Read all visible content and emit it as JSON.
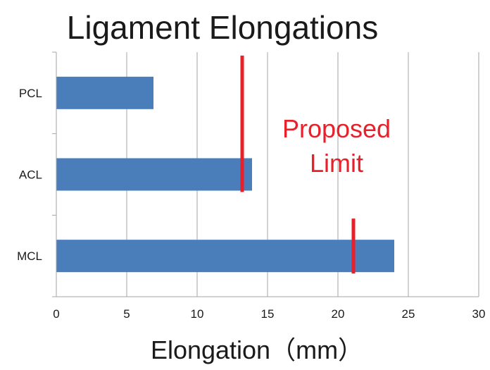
{
  "chart_data": {
    "type": "bar",
    "orientation": "horizontal",
    "title": "Ligament Elongations",
    "xlabel": "Elongation（mm）",
    "ylabel": "",
    "categories": [
      "PCL",
      "ACL",
      "MCL"
    ],
    "values": [
      6.9,
      13.9,
      24.0
    ],
    "xlim": [
      0,
      30
    ],
    "xticks": [
      0,
      5,
      10,
      15,
      20,
      25,
      30
    ],
    "grid": "vertical",
    "legend": "none",
    "bar_color": "#4a7ebb",
    "limits": [
      {
        "category": "PCL",
        "value": 13.2
      },
      {
        "category": "ACL",
        "value": 13.2
      },
      {
        "category": "MCL",
        "value": 21.1
      }
    ],
    "limit_color": "#e8202a",
    "annotation": {
      "lines": [
        "Proposed",
        "Limit"
      ],
      "color": "#e8202a"
    }
  }
}
